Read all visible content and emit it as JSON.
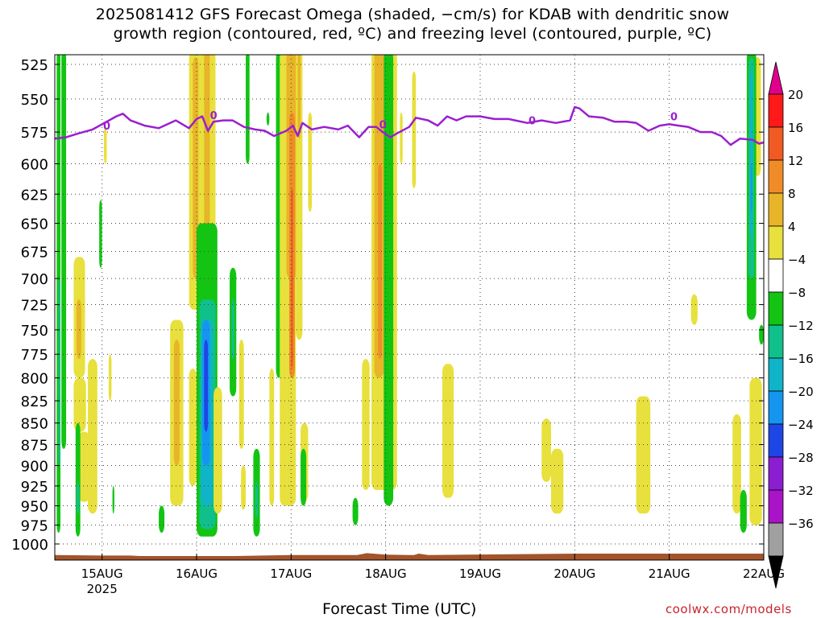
{
  "title": {
    "line1": "2025081412 GFS Forecast Omega (shaded, −cm/s) for KDAB with dendritic snow",
    "line2": "growth region (contoured, red, ºC) and freezing level (contoured, purple, ºC)"
  },
  "credit": "coolwx.com/models",
  "chart_data": {
    "type": "heatmap",
    "xlabel": "Forecast Time (UTC)",
    "x_ticks": [
      "15AUG",
      "16AUG",
      "17AUG",
      "18AUG",
      "19AUG",
      "20AUG",
      "21AUG",
      "22AUG"
    ],
    "x_year": "2025",
    "x_range_days": [
      14.5,
      22.0
    ],
    "y_ticks": [
      525,
      550,
      575,
      600,
      625,
      650,
      675,
      700,
      725,
      750,
      775,
      800,
      825,
      850,
      875,
      900,
      925,
      950,
      975,
      1000
    ],
    "y_range_hpa": [
      1015,
      515
    ],
    "grid": true,
    "colorbar": {
      "labels": [
        "20",
        "16",
        "12",
        "8",
        "4",
        "−4",
        "−8",
        "−12",
        "−16",
        "−20",
        "−24",
        "−28",
        "−32",
        "−36"
      ],
      "colors_top_to_bottom": [
        "#e0008c",
        "#ff1a1a",
        "#f25a23",
        "#f08c28",
        "#e8b428",
        "#e8e03c",
        "#ffffff",
        "#13c413",
        "#10c08a",
        "#10b4c8",
        "#1496f0",
        "#1e46e6",
        "#8c1ed2",
        "#aa14c8",
        "#a0a0a0",
        "#000000"
      ]
    },
    "freezing_level": {
      "color": "#9b1fd0",
      "label": "0",
      "points": [
        [
          14.5,
          580
        ],
        [
          14.62,
          579
        ],
        [
          14.75,
          576
        ],
        [
          14.9,
          573
        ],
        [
          15.05,
          567
        ],
        [
          15.15,
          563
        ],
        [
          15.22,
          561
        ],
        [
          15.3,
          566
        ],
        [
          15.45,
          570
        ],
        [
          15.6,
          572
        ],
        [
          15.78,
          566
        ],
        [
          15.92,
          572
        ],
        [
          16.0,
          565
        ],
        [
          16.06,
          563
        ],
        [
          16.12,
          574
        ],
        [
          16.18,
          567
        ],
        [
          16.28,
          566
        ],
        [
          16.38,
          566
        ],
        [
          16.5,
          571
        ],
        [
          16.62,
          573
        ],
        [
          16.72,
          574
        ],
        [
          16.82,
          578
        ],
        [
          16.95,
          574
        ],
        [
          17.02,
          570
        ],
        [
          17.07,
          578
        ],
        [
          17.12,
          568
        ],
        [
          17.22,
          573
        ],
        [
          17.35,
          571
        ],
        [
          17.5,
          573
        ],
        [
          17.6,
          570
        ],
        [
          17.72,
          579
        ],
        [
          17.82,
          571
        ],
        [
          17.9,
          571
        ],
        [
          17.97,
          575
        ],
        [
          18.05,
          579
        ],
        [
          18.12,
          576
        ],
        [
          18.25,
          571
        ],
        [
          18.32,
          564
        ],
        [
          18.45,
          566
        ],
        [
          18.55,
          570
        ],
        [
          18.65,
          563
        ],
        [
          18.75,
          566
        ],
        [
          18.85,
          563
        ],
        [
          19.0,
          563
        ],
        [
          19.15,
          565
        ],
        [
          19.3,
          565
        ],
        [
          19.5,
          568
        ],
        [
          19.65,
          566
        ],
        [
          19.8,
          568
        ],
        [
          19.95,
          566
        ],
        [
          20.0,
          556
        ],
        [
          20.05,
          557
        ],
        [
          20.15,
          563
        ],
        [
          20.3,
          564
        ],
        [
          20.42,
          567
        ],
        [
          20.55,
          567
        ],
        [
          20.65,
          568
        ],
        [
          20.78,
          574
        ],
        [
          20.9,
          570
        ],
        [
          21.0,
          569
        ],
        [
          21.1,
          570
        ],
        [
          21.2,
          571
        ],
        [
          21.33,
          575
        ],
        [
          21.45,
          575
        ],
        [
          21.55,
          578
        ],
        [
          21.65,
          585
        ],
        [
          21.75,
          580
        ],
        [
          21.88,
          581
        ],
        [
          21.95,
          584
        ],
        [
          22.0,
          583
        ]
      ]
    },
    "omega_colors": {
      "c4": "#e8e03c",
      "c8": "#e8b428",
      "c12": "#f08c28",
      "c16": "#f25a23",
      "n4": "#13c413",
      "n8": "#10c08a",
      "n12": "#10b4c8",
      "n16": "#1496f0",
      "n20": "#1e46e6"
    },
    "omega_regions": [
      {
        "c": "n4",
        "x": [
          14.52,
          14.56
        ],
        "y": [
          515,
          985
        ]
      },
      {
        "c": "n4",
        "x": [
          14.57,
          14.62
        ],
        "y": [
          515,
          880
        ]
      },
      {
        "c": "n8",
        "x": [
          14.54,
          14.56
        ],
        "y": [
          700,
          900
        ]
      },
      {
        "c": "c4",
        "x": [
          14.7,
          14.82
        ],
        "y": [
          680,
          800
        ]
      },
      {
        "c": "c8",
        "x": [
          14.73,
          14.78
        ],
        "y": [
          720,
          780
        ]
      },
      {
        "c": "c4",
        "x": [
          14.7,
          14.83
        ],
        "y": [
          800,
          860
        ]
      },
      {
        "c": "c4",
        "x": [
          14.75,
          14.87
        ],
        "y": [
          860,
          945
        ]
      },
      {
        "c": "c4",
        "x": [
          14.85,
          14.95
        ],
        "y": [
          780,
          960
        ]
      },
      {
        "c": "c4",
        "x": [
          15.07,
          15.1
        ],
        "y": [
          775,
          825
        ]
      },
      {
        "c": "n4",
        "x": [
          14.72,
          14.77
        ],
        "y": [
          850,
          990
        ]
      },
      {
        "c": "n8",
        "x": [
          14.73,
          14.76
        ],
        "y": [
          920,
          960
        ]
      },
      {
        "c": "n4",
        "x": [
          14.97,
          15.0
        ],
        "y": [
          630,
          690
        ]
      },
      {
        "c": "n4",
        "x": [
          15.11,
          15.13
        ],
        "y": [
          925,
          960
        ]
      },
      {
        "c": "c4",
        "x": [
          15.02,
          15.05
        ],
        "y": [
          570,
          600
        ]
      },
      {
        "c": "c4",
        "x": [
          15.72,
          15.86
        ],
        "y": [
          740,
          950
        ]
      },
      {
        "c": "c8",
        "x": [
          15.76,
          15.82
        ],
        "y": [
          760,
          900
        ]
      },
      {
        "c": "n4",
        "x": [
          15.6,
          15.66
        ],
        "y": [
          950,
          985
        ]
      },
      {
        "c": "c4",
        "x": [
          15.92,
          16.0
        ],
        "y": [
          790,
          925
        ]
      },
      {
        "c": "c4",
        "x": [
          15.92,
          16.2
        ],
        "y": [
          515,
          730
        ]
      },
      {
        "c": "c8",
        "x": [
          15.96,
          16.02
        ],
        "y": [
          520,
          700
        ]
      },
      {
        "c": "c8",
        "x": [
          16.08,
          16.14
        ],
        "y": [
          515,
          660
        ]
      },
      {
        "c": "n4",
        "x": [
          16.0,
          16.22
        ],
        "y": [
          650,
          990
        ]
      },
      {
        "c": "n8",
        "x": [
          16.03,
          16.2
        ],
        "y": [
          720,
          980
        ]
      },
      {
        "c": "n12",
        "x": [
          16.05,
          16.17
        ],
        "y": [
          740,
          950
        ]
      },
      {
        "c": "n16",
        "x": [
          16.06,
          16.14
        ],
        "y": [
          740,
          900
        ]
      },
      {
        "c": "n20",
        "x": [
          16.08,
          16.12
        ],
        "y": [
          760,
          860
        ]
      },
      {
        "c": "c4",
        "x": [
          16.18,
          16.27
        ],
        "y": [
          810,
          960
        ]
      },
      {
        "c": "n4",
        "x": [
          16.35,
          16.42
        ],
        "y": [
          690,
          820
        ]
      },
      {
        "c": "n8",
        "x": [
          16.37,
          16.4
        ],
        "y": [
          720,
          780
        ]
      },
      {
        "c": "c4",
        "x": [
          16.45,
          16.5
        ],
        "y": [
          760,
          880
        ]
      },
      {
        "c": "c4",
        "x": [
          16.47,
          16.52
        ],
        "y": [
          900,
          955
        ]
      },
      {
        "c": "n4",
        "x": [
          16.6,
          16.67
        ],
        "y": [
          880,
          990
        ]
      },
      {
        "c": "n8",
        "x": [
          16.62,
          16.65
        ],
        "y": [
          920,
          965
        ]
      },
      {
        "c": "n4",
        "x": [
          16.52,
          16.56
        ],
        "y": [
          515,
          600
        ]
      },
      {
        "c": "n4",
        "x": [
          16.74,
          16.77
        ],
        "y": [
          560,
          570
        ]
      },
      {
        "c": "c4",
        "x": [
          16.77,
          16.82
        ],
        "y": [
          790,
          950
        ]
      },
      {
        "c": "n4",
        "x": [
          16.84,
          16.9
        ],
        "y": [
          515,
          800
        ]
      },
      {
        "c": "c4",
        "x": [
          16.88,
          17.05
        ],
        "y": [
          515,
          950
        ]
      },
      {
        "c": "c8",
        "x": [
          16.95,
          17.07
        ],
        "y": [
          515,
          700
        ]
      },
      {
        "c": "c12",
        "x": [
          16.98,
          17.04
        ],
        "y": [
          560,
          800
        ]
      },
      {
        "c": "c16",
        "x": [
          17.0,
          17.02
        ],
        "y": [
          620,
          790
        ]
      },
      {
        "c": "c4",
        "x": [
          17.05,
          17.12
        ],
        "y": [
          515,
          760
        ]
      },
      {
        "c": "c8",
        "x": [
          17.07,
          17.1
        ],
        "y": [
          515,
          580
        ]
      },
      {
        "c": "c4",
        "x": [
          17.1,
          17.18
        ],
        "y": [
          850,
          945
        ]
      },
      {
        "c": "n4",
        "x": [
          17.1,
          17.16
        ],
        "y": [
          880,
          950
        ]
      },
      {
        "c": "c4",
        "x": [
          17.18,
          17.22
        ],
        "y": [
          560,
          640
        ]
      },
      {
        "c": "n4",
        "x": [
          17.65,
          17.71
        ],
        "y": [
          940,
          975
        ]
      },
      {
        "c": "c4",
        "x": [
          17.75,
          17.83
        ],
        "y": [
          780,
          930
        ]
      },
      {
        "c": "c4",
        "x": [
          17.85,
          18.12
        ],
        "y": [
          515,
          930
        ]
      },
      {
        "c": "c8",
        "x": [
          17.88,
          17.98
        ],
        "y": [
          515,
          800
        ]
      },
      {
        "c": "c12",
        "x": [
          17.92,
          17.96
        ],
        "y": [
          600,
          780
        ]
      },
      {
        "c": "n4",
        "x": [
          17.98,
          18.08
        ],
        "y": [
          515,
          950
        ]
      },
      {
        "c": "c4",
        "x": [
          18.15,
          18.18
        ],
        "y": [
          560,
          600
        ]
      },
      {
        "c": "c4",
        "x": [
          18.28,
          18.32
        ],
        "y": [
          530,
          620
        ]
      },
      {
        "c": "c4",
        "x": [
          18.6,
          18.72
        ],
        "y": [
          785,
          940
        ]
      },
      {
        "c": "c4",
        "x": [
          19.65,
          19.75
        ],
        "y": [
          845,
          920
        ]
      },
      {
        "c": "c4",
        "x": [
          19.75,
          19.88
        ],
        "y": [
          880,
          960
        ]
      },
      {
        "c": "c4",
        "x": [
          20.65,
          20.8
        ],
        "y": [
          820,
          960
        ]
      },
      {
        "c": "c4",
        "x": [
          21.23,
          21.3
        ],
        "y": [
          715,
          745
        ]
      },
      {
        "c": "c4",
        "x": [
          21.67,
          21.76
        ],
        "y": [
          840,
          960
        ]
      },
      {
        "c": "c4",
        "x": [
          21.85,
          21.98
        ],
        "y": [
          800,
          975
        ]
      },
      {
        "c": "c4",
        "x": [
          21.9,
          21.97
        ],
        "y": [
          520,
          610
        ]
      },
      {
        "c": "n4",
        "x": [
          21.75,
          21.82
        ],
        "y": [
          930,
          985
        ]
      },
      {
        "c": "n4",
        "x": [
          21.82,
          21.92
        ],
        "y": [
          515,
          740
        ]
      },
      {
        "c": "n8",
        "x": [
          21.84,
          21.9
        ],
        "y": [
          520,
          700
        ]
      },
      {
        "c": "n12",
        "x": [
          21.85,
          21.88
        ],
        "y": [
          530,
          660
        ]
      },
      {
        "c": "n16",
        "x": [
          21.86,
          21.87
        ],
        "y": [
          600,
          640
        ]
      },
      {
        "c": "n4",
        "x": [
          21.95,
          22.0
        ],
        "y": [
          745,
          765
        ]
      }
    ],
    "surface": {
      "color": "#a3542b",
      "points": [
        [
          14.5,
          1011
        ],
        [
          15.0,
          1012
        ],
        [
          15.3,
          1012
        ],
        [
          15.4,
          1013
        ],
        [
          16.4,
          1013
        ],
        [
          17.0,
          1011
        ],
        [
          17.7,
          1011
        ],
        [
          17.8,
          1007
        ],
        [
          18.0,
          1010
        ],
        [
          18.3,
          1011
        ],
        [
          18.35,
          1008
        ],
        [
          18.45,
          1011
        ],
        [
          20.0,
          1008
        ],
        [
          21.5,
          1008
        ],
        [
          22.0,
          1008
        ]
      ]
    }
  }
}
